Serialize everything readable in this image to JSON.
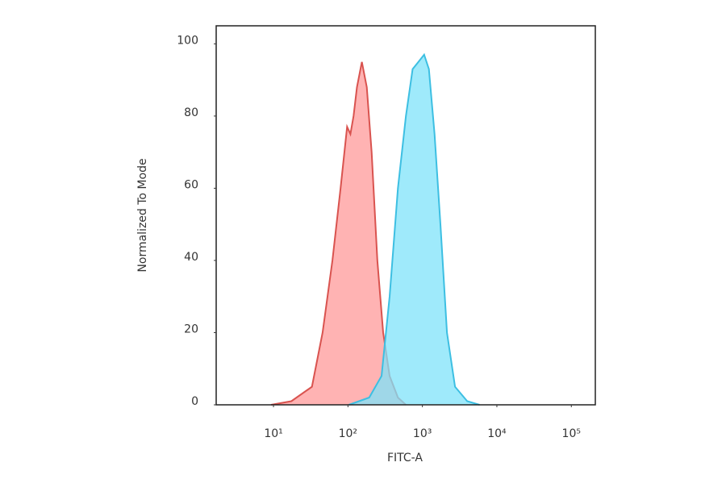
{
  "chart_data": {
    "type": "area",
    "x_label": "FITC-A",
    "y_label": "Normalized To Mode",
    "log_x": true,
    "xlim": [
      1.7,
      210000
    ],
    "xticks": [
      {
        "value": 10,
        "label": "10¹"
      },
      {
        "value": 100,
        "label": "10²"
      },
      {
        "value": 1000,
        "label": "10³"
      },
      {
        "value": 10000,
        "label": "10⁴"
      },
      {
        "value": 100000,
        "label": "10⁵"
      }
    ],
    "ylim": [
      0,
      105
    ],
    "yticks": [
      0,
      20,
      40,
      60,
      80,
      100
    ],
    "grid": false,
    "series": [
      {
        "color": "#ff9a9a",
        "line_color": "#d9534f",
        "x": [
          9.3,
          17.4,
          32.8,
          45.6,
          61.9,
          79.6,
          97.5,
          108,
          119,
          132,
          154,
          179,
          208,
          248,
          297,
          363,
          469,
          601
        ],
        "values": [
          0,
          1,
          5,
          20,
          40,
          60,
          77,
          75,
          80,
          88,
          95,
          88,
          70,
          40,
          20,
          8,
          2,
          0
        ]
      },
      {
        "color": "#7fe3fa",
        "line_color": "#3dbfe2",
        "x": [
          103,
          193,
          283,
          363,
          469,
          601,
          738,
          883,
          1055,
          1222,
          1457,
          1745,
          2140,
          2744,
          4000,
          5850
        ],
        "values": [
          0,
          2,
          8,
          30,
          60,
          80,
          93,
          95,
          97,
          93,
          75,
          50,
          20,
          5,
          1,
          0
        ]
      }
    ]
  }
}
